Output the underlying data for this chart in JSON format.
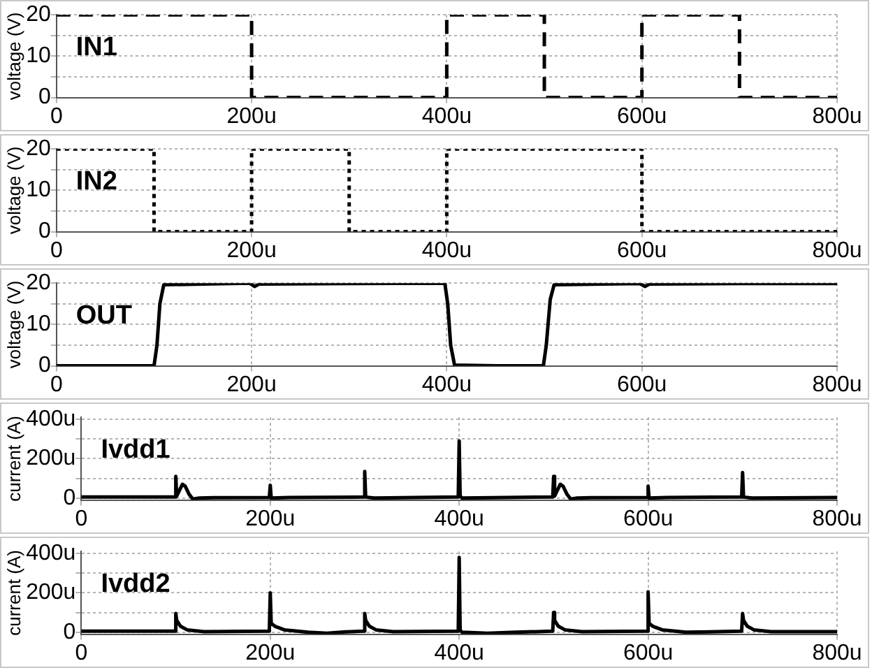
{
  "chart_data": [
    {
      "type": "line",
      "ylabel": "voltage (V)",
      "xlim": [
        0,
        800
      ],
      "xticks": [
        {
          "value": 0,
          "label": "0"
        },
        {
          "value": 200,
          "label": "200u"
        },
        {
          "value": 400,
          "label": "400u"
        },
        {
          "value": 600,
          "label": "600u"
        },
        {
          "value": 800,
          "label": "800u"
        }
      ],
      "ylim": [
        0,
        20
      ],
      "yticks": [
        0,
        {
          "value": 5,
          "label": null
        },
        10,
        {
          "value": 15,
          "label": null
        },
        20
      ],
      "grid": true,
      "marker": "none",
      "series": [
        {
          "name": "IN1",
          "color": "#000000",
          "line_style": "dashed",
          "x": [
            0,
            200,
            200,
            400,
            400,
            500,
            500,
            600,
            600,
            700,
            700,
            800
          ],
          "values": [
            20,
            20,
            0,
            0,
            20,
            20,
            0,
            0,
            20,
            20,
            0,
            0
          ]
        }
      ]
    },
    {
      "type": "line",
      "ylabel": "voltage (V)",
      "xlim": [
        0,
        800
      ],
      "xticks": [
        {
          "value": 0,
          "label": "0"
        },
        {
          "value": 200,
          "label": "200u"
        },
        {
          "value": 400,
          "label": "400u"
        },
        {
          "value": 600,
          "label": "600u"
        },
        {
          "value": 800,
          "label": "800u"
        }
      ],
      "ylim": [
        0,
        20
      ],
      "yticks": [
        {
          "value": 0,
          "label": "0"
        },
        {
          "value": 5,
          "label": null
        },
        {
          "value": 10,
          "label": "10"
        },
        {
          "value": 15,
          "label": null
        },
        {
          "value": 20,
          "label": "20"
        }
      ],
      "grid": true,
      "marker": "none",
      "series": [
        {
          "name": "IN2",
          "color": "#000000",
          "line_style": "dotted",
          "x": [
            0,
            100,
            100,
            200,
            200,
            300,
            300,
            400,
            400,
            600,
            600,
            800
          ],
          "values": [
            20,
            20,
            0,
            0,
            20,
            20,
            0,
            0,
            20,
            20,
            0,
            0
          ]
        }
      ]
    },
    {
      "type": "line",
      "ylabel": "voltage (V)",
      "xlim": [
        0,
        800
      ],
      "xticks": [
        {
          "value": 0,
          "label": "0"
        },
        {
          "value": 200,
          "label": "200u"
        },
        {
          "value": 400,
          "label": "400u"
        },
        {
          "value": 600,
          "label": "600u"
        },
        {
          "value": 800,
          "label": "800u"
        }
      ],
      "ylim": [
        0,
        20
      ],
      "yticks": [
        {
          "value": 0,
          "label": "0"
        },
        {
          "value": 5,
          "label": null
        },
        {
          "value": 10,
          "label": "10"
        },
        {
          "value": 15,
          "label": null
        },
        {
          "value": 20,
          "label": "20"
        }
      ],
      "grid": true,
      "marker": "none",
      "series": [
        {
          "name": "OUT",
          "color": "#000000",
          "line_style": "solid",
          "x": [
            0,
            100,
            103,
            106,
            110,
            150,
            198,
            203,
            208,
            300,
            398,
            401,
            404,
            408,
            450,
            499,
            502,
            506,
            510,
            560,
            598,
            603,
            608,
            700,
            800
          ],
          "values": [
            0,
            0,
            5,
            15,
            19.6,
            19.8,
            20,
            19.2,
            19.8,
            19.9,
            20,
            15,
            5,
            0.2,
            0,
            0,
            5,
            16,
            19.6,
            19.8,
            19.9,
            19.2,
            19.8,
            19.9,
            19.9
          ]
        }
      ]
    },
    {
      "type": "line",
      "ylabel": "current (A)",
      "xlim": [
        0,
        800
      ],
      "xticks": [
        {
          "value": 0,
          "label": "0"
        },
        {
          "value": 200,
          "label": "200u"
        },
        {
          "value": 400,
          "label": "400u"
        },
        {
          "value": 600,
          "label": "600u"
        },
        {
          "value": 800,
          "label": "800u"
        }
      ],
      "ylim": [
        -10,
        410
      ],
      "yticks": [
        {
          "value": 0,
          "label": "0"
        },
        {
          "value": 100,
          "label": null
        },
        {
          "value": 200,
          "label": "200u"
        },
        {
          "value": 300,
          "label": null
        },
        {
          "value": 400,
          "label": "400u"
        }
      ],
      "grid": true,
      "marker": "none",
      "series": [
        {
          "name": "Ivdd1",
          "color": "#000000",
          "line_style": "solid",
          "x": [
            0,
            99,
            100,
            101,
            104,
            107,
            110,
            114,
            118,
            125,
            140,
            199,
            200,
            201,
            220,
            299,
            300,
            301,
            310,
            399,
            400,
            401,
            403,
            450,
            499,
            500,
            501,
            504,
            507,
            510,
            514,
            518,
            525,
            540,
            599,
            600,
            601,
            620,
            699,
            700,
            701,
            710,
            800
          ],
          "values": [
            5,
            5,
            110,
            10,
            40,
            70,
            60,
            20,
            -5,
            0,
            2,
            3,
            65,
            0,
            3,
            5,
            135,
            5,
            0,
            5,
            290,
            10,
            0,
            3,
            5,
            110,
            10,
            40,
            70,
            60,
            20,
            -5,
            0,
            2,
            3,
            60,
            0,
            3,
            5,
            130,
            5,
            0,
            3
          ]
        }
      ]
    },
    {
      "type": "line",
      "ylabel": "current (A)",
      "xlim": [
        0,
        800
      ],
      "xticks": [
        {
          "value": 0,
          "label": "0"
        },
        {
          "value": 200,
          "label": "200u"
        },
        {
          "value": 400,
          "label": "400u"
        },
        {
          "value": 600,
          "label": "600u"
        },
        {
          "value": 800,
          "label": "800u"
        }
      ],
      "ylim": [
        -10,
        410
      ],
      "yticks": [
        {
          "value": 0,
          "label": "0"
        },
        {
          "value": 100,
          "label": null
        },
        {
          "value": 200,
          "label": "200u"
        },
        {
          "value": 300,
          "label": null
        },
        {
          "value": 400,
          "label": "400u"
        }
      ],
      "grid": true,
      "marker": "none",
      "series": [
        {
          "name": "Ivdd2",
          "color": "#000000",
          "line_style": "solid",
          "x": [
            0,
            99,
            100,
            101,
            105,
            112,
            130,
            199,
            200,
            201,
            205,
            215,
            240,
            260,
            280,
            299,
            300,
            301,
            305,
            312,
            330,
            399,
            400,
            401,
            403,
            430,
            460,
            499,
            500,
            501,
            505,
            512,
            530,
            599,
            600,
            601,
            605,
            615,
            640,
            699,
            700,
            701,
            705,
            712,
            730,
            800
          ],
          "values": [
            5,
            5,
            95,
            60,
            30,
            12,
            3,
            5,
            200,
            45,
            30,
            12,
            0,
            -5,
            2,
            5,
            95,
            60,
            30,
            12,
            3,
            5,
            380,
            10,
            0,
            -5,
            0,
            5,
            100,
            60,
            30,
            12,
            3,
            5,
            205,
            45,
            30,
            12,
            0,
            5,
            95,
            60,
            30,
            12,
            3,
            3
          ]
        }
      ]
    }
  ]
}
